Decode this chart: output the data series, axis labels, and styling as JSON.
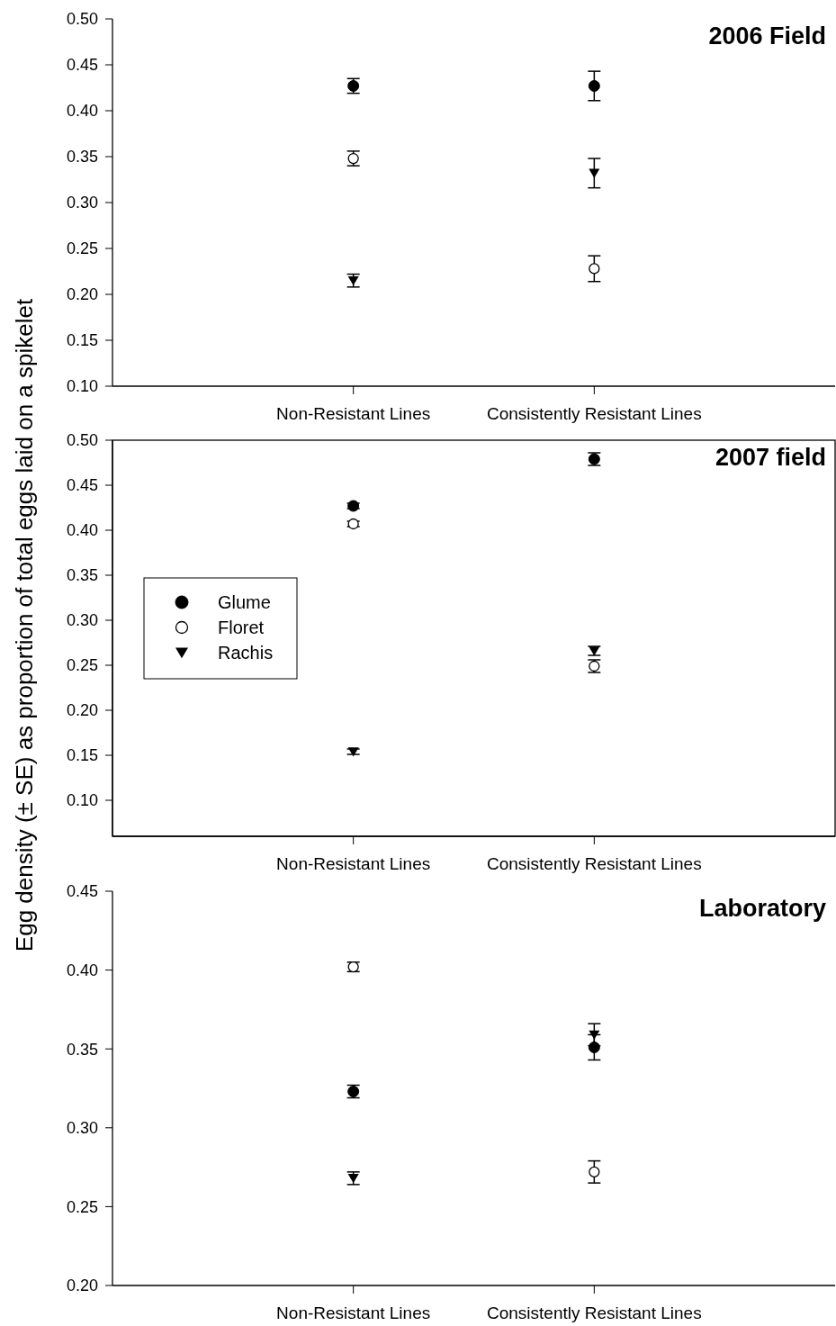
{
  "chart_data": [
    {
      "type": "scatter",
      "title": "2006 Field",
      "categories": [
        "Non-Resistant Lines",
        "Consistently Resistant Lines"
      ],
      "ylim": [
        0.1,
        0.5
      ],
      "yticks": [
        {
          "value": 0.1,
          "label": "0.10"
        },
        {
          "value": 0.15,
          "label": "0.15"
        },
        {
          "value": 0.2,
          "label": "0.20"
        },
        {
          "value": 0.25,
          "label": "0.25"
        },
        {
          "value": 0.3,
          "label": "0.30"
        },
        {
          "value": 0.35,
          "label": "0.35"
        },
        {
          "value": 0.4,
          "label": "0.40"
        },
        {
          "value": 0.45,
          "label": "0.45"
        },
        {
          "value": 0.5,
          "label": "0.50"
        }
      ],
      "series": [
        {
          "color": "#000000",
          "marker": "circle",
          "values": [
            0.427,
            0.427
          ],
          "errors": [
            0.008,
            0.016
          ]
        },
        {
          "color": "#000000",
          "marker": "circle-open",
          "values": [
            0.348,
            0.228
          ],
          "errors": [
            0.008,
            0.014
          ]
        },
        {
          "color": "#000000",
          "marker": "triangle-down",
          "values": [
            0.215,
            0.332
          ],
          "errors": [
            0.007,
            0.016
          ]
        }
      ]
    },
    {
      "type": "scatter",
      "title": "2007 field",
      "ylabel": "Egg density (± SE) as proportion of total eggs laid on a spikelet",
      "legend": "left",
      "categories": [
        "Non-Resistant Lines",
        "Consistently Resistant Lines"
      ],
      "ylim": [
        0.06,
        0.5
      ],
      "yticks": [
        {
          "value": 0.1,
          "label": "0.10"
        },
        {
          "value": 0.15,
          "label": "0.15"
        },
        {
          "value": 0.2,
          "label": "0.20"
        },
        {
          "value": 0.25,
          "label": "0.25"
        },
        {
          "value": 0.3,
          "label": "0.30"
        },
        {
          "value": 0.35,
          "label": "0.35"
        },
        {
          "value": 0.4,
          "label": "0.40"
        },
        {
          "value": 0.45,
          "label": "0.45"
        },
        {
          "value": 0.5,
          "label": "0.50"
        }
      ],
      "series": [
        {
          "name": "Glume",
          "color": "#000000",
          "marker": "circle",
          "values": [
            0.427,
            0.479
          ],
          "errors": [
            0.003,
            0.007
          ]
        },
        {
          "name": "Floret",
          "color": "#000000",
          "marker": "circle-open",
          "values": [
            0.407,
            0.249
          ],
          "errors": [
            0.003,
            0.007
          ]
        },
        {
          "name": "Rachis",
          "color": "#000000",
          "marker": "triangle-down",
          "values": [
            0.154,
            0.266
          ],
          "errors": [
            0.003,
            0.005
          ]
        }
      ]
    },
    {
      "type": "scatter",
      "title": "Laboratory",
      "categories": [
        "Non-Resistant Lines",
        "Consistently Resistant Lines"
      ],
      "ylim": [
        0.2,
        0.45
      ],
      "yticks": [
        {
          "value": 0.2,
          "label": "0.20"
        },
        {
          "value": 0.25,
          "label": "0.25"
        },
        {
          "value": 0.3,
          "label": "0.30"
        },
        {
          "value": 0.35,
          "label": "0.35"
        },
        {
          "value": 0.4,
          "label": "0.40"
        },
        {
          "value": 0.45,
          "label": "0.45"
        }
      ],
      "series": [
        {
          "color": "#000000",
          "marker": "circle",
          "values": [
            0.323,
            0.351
          ],
          "errors": [
            0.004,
            0.008
          ]
        },
        {
          "color": "#000000",
          "marker": "circle-open",
          "values": [
            0.402,
            0.272
          ],
          "errors": [
            0.003,
            0.007
          ]
        },
        {
          "color": "#000000",
          "marker": "triangle-down",
          "values": [
            0.268,
            0.359
          ],
          "errors": [
            0.004,
            0.007
          ]
        }
      ]
    }
  ]
}
